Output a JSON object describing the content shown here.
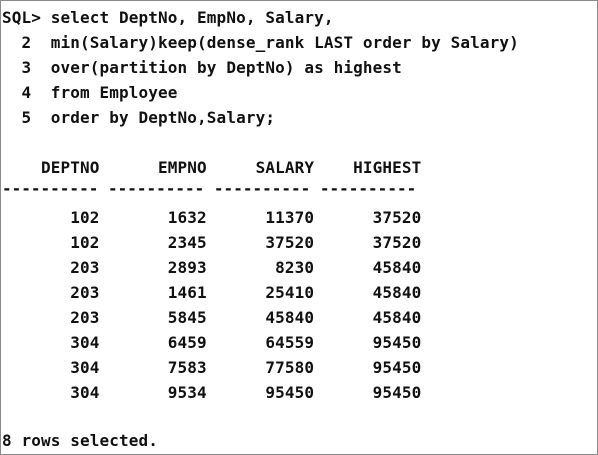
{
  "console": {
    "query": [
      "SQL> select DeptNo, EmpNo, Salary,",
      "  2  min(Salary)keep(dense_rank LAST order by Salary)",
      "  3  over(partition by DeptNo) as highest",
      "  4  from Employee",
      "  5  order by DeptNo,Salary;"
    ],
    "table": {
      "header": "    DEPTNO      EMPNO     SALARY    HIGHEST",
      "separator": "---------- ---------- ---------- ----------",
      "rows": [
        "       102       1632      11370      37520",
        "       102       2345      37520      37520",
        "       203       2893       8230      45840",
        "       203       1461      25410      45840",
        "       203       5845      45840      45840",
        "       304       6459      64559      95450",
        "       304       7583      77580      95450",
        "       304       9534      95450      95450"
      ]
    },
    "footer": "8 rows selected."
  }
}
